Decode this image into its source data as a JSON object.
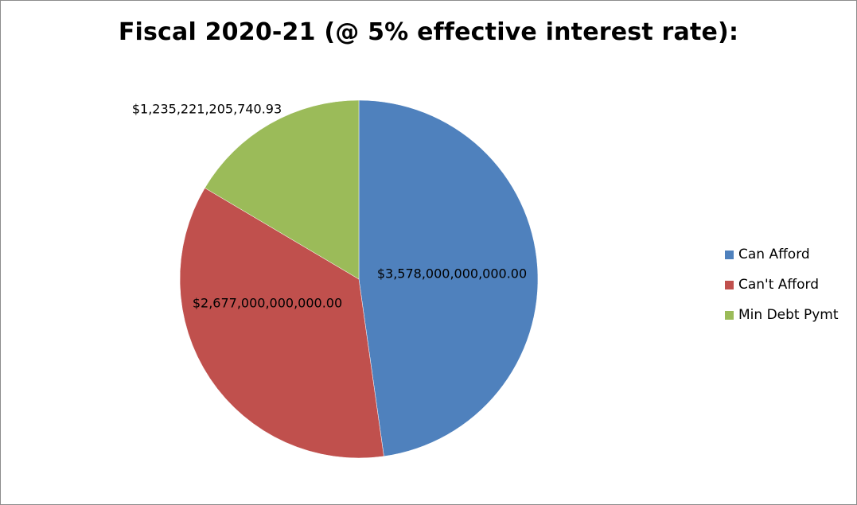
{
  "chart_data": {
    "type": "pie",
    "title": "Fiscal 2020-21 (@ 5% effective interest rate):",
    "slices": [
      {
        "name": "Can Afford",
        "value": 3578000000000.0,
        "label": "$3,578,000,000,000.00",
        "color": "#4f81bd"
      },
      {
        "name": "Can't Afford",
        "value": 2677000000000.0,
        "label": "$2,677,000,000,000.00",
        "color": "#c0504d"
      },
      {
        "name": "Min Debt Pymt",
        "value": 1235221205740.93,
        "label": "$1,235,221,205,740.93",
        "color": "#9bbb59"
      }
    ],
    "legend_position": "right"
  }
}
